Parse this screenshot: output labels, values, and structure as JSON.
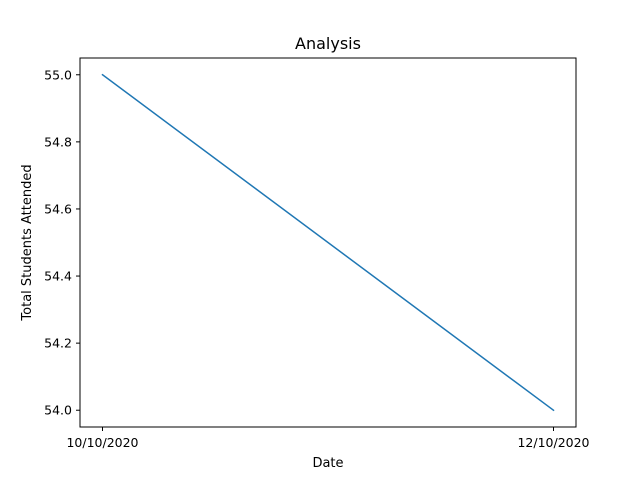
{
  "chart_data": {
    "type": "line",
    "title": "Analysis",
    "xlabel": "Date",
    "ylabel": "Total Students Attended",
    "categories": [
      "10/10/2020",
      "12/10/2020"
    ],
    "series": [
      {
        "values": [
          55.0,
          54.0
        ]
      }
    ],
    "ylim": [
      53.95,
      55.05
    ],
    "yticks": [
      54.0,
      54.2,
      54.4,
      54.6,
      54.8,
      55.0
    ],
    "ytick_labels": [
      "54.0",
      "54.2",
      "54.4",
      "54.6",
      "54.8",
      "55.0"
    ],
    "grid": false,
    "line_color": "#1f77b4"
  }
}
